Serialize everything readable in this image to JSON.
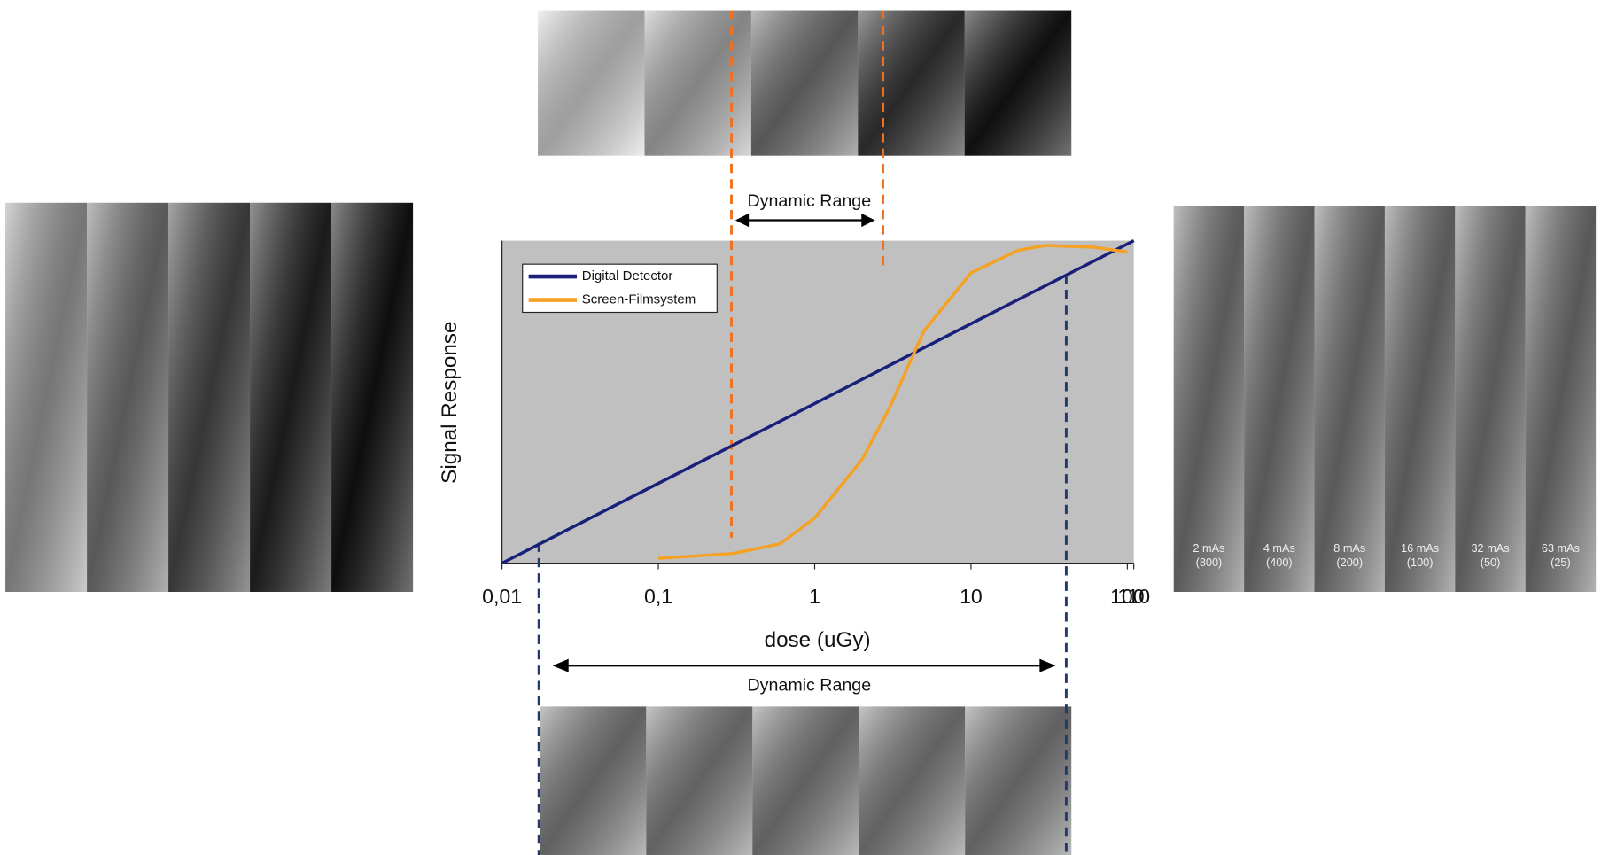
{
  "chart_data": {
    "type": "line",
    "x_label": "dose (uGy)",
    "y_label": "Signal Response",
    "xscale": "log",
    "xlim": [
      0.01,
      110
    ],
    "xticks": [
      {
        "value": 0.01,
        "label": "0,01"
      },
      {
        "value": 0.1,
        "label": "0,1"
      },
      1,
      10,
      100,
      110
    ],
    "ylim": [
      0,
      100
    ],
    "series": [
      {
        "name": "Digital Detector",
        "color": "#1a1f7a",
        "x": [
          0.01,
          110
        ],
        "values": [
          0,
          100
        ]
      },
      {
        "name": "Screen-Filmsystem",
        "color": "#f5a124",
        "x": [
          0.1,
          0.3,
          0.6,
          1,
          2,
          3,
          5,
          10,
          20,
          30,
          60,
          100
        ],
        "values": [
          1.5,
          3,
          6,
          14,
          32,
          48,
          72,
          90,
          97,
          98.5,
          98,
          96.5
        ]
      }
    ],
    "annotations": [
      "Dynamic Range",
      "Dynamic Range"
    ]
  },
  "exposure_labels": [
    {
      "mas": "2 mAs",
      "speed": "(800)"
    },
    {
      "mas": "4 mAs",
      "speed": "(400)"
    },
    {
      "mas": "8 mAs",
      "speed": "(200)"
    },
    {
      "mas": "16 mAs",
      "speed": "(100)"
    },
    {
      "mas": "32 mAs",
      "speed": "(50)"
    },
    {
      "mas": "63 mAs",
      "speed": "(25)"
    }
  ]
}
